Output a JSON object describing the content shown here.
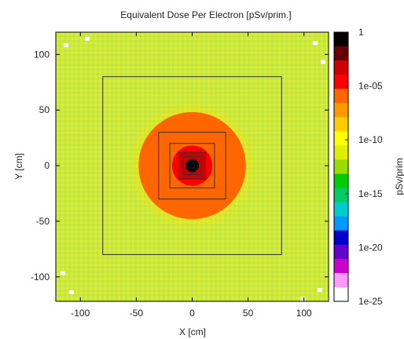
{
  "chart_data": {
    "type": "heatmap",
    "title": "Equivalent Dose Per Electron [pSv/prim.]",
    "xlabel": "X [cm]",
    "ylabel": "Y [cm]",
    "colorbar_label": "pSv/prim",
    "xlim": [
      -122,
      122
    ],
    "ylim": [
      -122,
      120
    ],
    "x_ticks": [
      -100,
      -50,
      0,
      50,
      100
    ],
    "y_ticks": [
      -100,
      -50,
      0,
      50,
      100
    ],
    "colorbar": {
      "scale": "log",
      "range": [
        1e-25,
        1
      ],
      "ticks": [
        {
          "value": 1,
          "label": "1"
        },
        {
          "value": 1e-05,
          "label": "1e-05"
        },
        {
          "value": 1e-10,
          "label": "1e-10"
        },
        {
          "value": 1e-15,
          "label": "1e-15"
        },
        {
          "value": 1e-20,
          "label": "1e-20"
        },
        {
          "value": 1e-25,
          "label": "1e-25"
        }
      ],
      "colors": [
        "#ffffff",
        "#ff99ff",
        "#cc00cc",
        "#6600cc",
        "#0000cc",
        "#0099ff",
        "#00cccc",
        "#00cc66",
        "#00cc00",
        "#99dd00",
        "#ddee00",
        "#ffff00",
        "#ffcc00",
        "#ff9900",
        "#ff6600",
        "#ff0000",
        "#cc0000",
        "#660000",
        "#000000"
      ]
    },
    "dose_regions": [
      {
        "half_width_cm": 122,
        "log_dose": -8.5,
        "label": "background"
      },
      {
        "radius_cm": 58,
        "log_dose": -7.0,
        "label": "outer halo"
      },
      {
        "radius_cm": 48,
        "log_dose": -6.2,
        "label": "orange ring"
      },
      {
        "radius_cm": 30,
        "log_dose": -5.3,
        "label": "dark orange ring"
      },
      {
        "radius_cm": 18,
        "log_dose": -4.2,
        "label": "red-orange core"
      },
      {
        "half_width_cm": 12,
        "log_dose": -3.2,
        "label": "red square"
      },
      {
        "radius_cm": 6,
        "log_dose": -1.0,
        "label": "dark center"
      }
    ],
    "geometry_boxes": [
      {
        "x": [
          -80,
          80
        ],
        "y": [
          -80,
          80
        ]
      },
      {
        "x": [
          -30,
          30
        ],
        "y": [
          -30,
          30
        ]
      },
      {
        "x": [
          -20,
          20
        ],
        "y": [
          -20,
          20
        ]
      },
      {
        "x": [
          -12,
          12
        ],
        "y": [
          -12,
          12
        ]
      },
      {
        "x": [
          -8,
          8
        ],
        "y": [
          -8,
          8
        ]
      }
    ],
    "center_marker": {
      "x": 0,
      "y": 0,
      "radii_cm": [
        5,
        2.5
      ]
    },
    "grid": false,
    "legend": "colorbar-right"
  }
}
